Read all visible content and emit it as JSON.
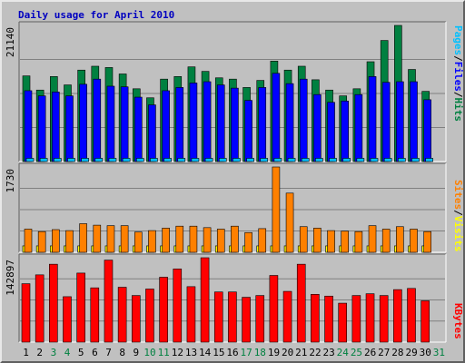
{
  "chart_data": [
    {
      "type": "bar",
      "title": "Daily usage for April 2010",
      "x": [
        "1",
        "2",
        "3",
        "4",
        "5",
        "6",
        "7",
        "8",
        "9",
        "10",
        "11",
        "12",
        "13",
        "14",
        "15",
        "16",
        "17",
        "18",
        "19",
        "20",
        "21",
        "22",
        "23",
        "24",
        "25",
        "26",
        "27",
        "28",
        "29",
        "30",
        "31"
      ],
      "weekend_days": [
        "3",
        "4",
        "10",
        "11",
        "17",
        "18",
        "24",
        "25",
        "31"
      ],
      "ymax_label": "21140",
      "series": [
        {
          "name": "Hits",
          "color": "#008040",
          "values": [
            13300,
            11100,
            13200,
            11900,
            14200,
            14800,
            14600,
            13600,
            11300,
            9900,
            12800,
            13200,
            14700,
            14000,
            13000,
            12800,
            11500,
            12600,
            15600,
            14200,
            14800,
            12700,
            11100,
            10200,
            11300,
            15500,
            18800,
            21140,
            14300,
            10900,
            0
          ]
        },
        {
          "name": "Files",
          "color": "#0000ff",
          "values": [
            11000,
            10200,
            10800,
            10200,
            12000,
            12800,
            11700,
            11600,
            10000,
            8800,
            11000,
            11500,
            12200,
            12400,
            11900,
            11400,
            9500,
            11500,
            13700,
            12100,
            12800,
            10400,
            9200,
            9400,
            10400,
            13200,
            12300,
            12400,
            12400,
            9600,
            0
          ]
        },
        {
          "name": "Pages",
          "color": "#00c0ff",
          "values": [
            500,
            500,
            500,
            500,
            500,
            500,
            500,
            500,
            500,
            500,
            500,
            500,
            500,
            500,
            500,
            500,
            500,
            500,
            500,
            500,
            500,
            500,
            500,
            500,
            500,
            500,
            500,
            500,
            500,
            500,
            0
          ]
        }
      ]
    },
    {
      "type": "bar",
      "ymax_label": "1730",
      "series": [
        {
          "name": "Visits",
          "color": "#ffff00",
          "values": [
            130,
            130,
            130,
            130,
            130,
            130,
            130,
            130,
            130,
            130,
            130,
            130,
            130,
            130,
            130,
            130,
            130,
            130,
            130,
            130,
            130,
            130,
            130,
            130,
            130,
            130,
            130,
            130,
            130,
            130,
            0
          ]
        },
        {
          "name": "Sites",
          "color": "#ff8000",
          "values": [
            470,
            420,
            460,
            440,
            580,
            550,
            540,
            540,
            410,
            440,
            490,
            530,
            530,
            500,
            470,
            530,
            400,
            480,
            1730,
            1200,
            520,
            490,
            440,
            430,
            420,
            540,
            470,
            520,
            470,
            420,
            0
          ]
        }
      ]
    },
    {
      "type": "bar",
      "ymax_label": "142897",
      "series": [
        {
          "name": "KBytes",
          "color": "#ff0000",
          "values": [
            99000,
            114000,
            132000,
            77000,
            117000,
            92000,
            139000,
            93000,
            79000,
            90000,
            110000,
            124000,
            94000,
            143000,
            85000,
            85000,
            76000,
            79000,
            113000,
            86000,
            132000,
            81000,
            78000,
            66000,
            79000,
            82000,
            79000,
            89000,
            91000,
            70000,
            0
          ]
        }
      ]
    }
  ]
}
